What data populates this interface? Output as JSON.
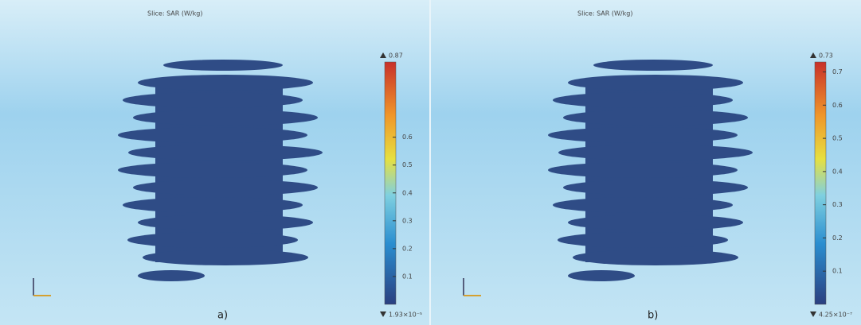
{
  "panels": [
    {
      "title": "Slice: SAR (W/kg)",
      "label": "a)",
      "colorbar": {
        "max": 0.87,
        "min": {
          "value": 1.93e-05,
          "label": "1.93×10⁻⁵"
        },
        "ticks": [
          0.6,
          0.5,
          0.4,
          0.3,
          0.2,
          0.1
        ]
      }
    },
    {
      "title": "Slice: SAR (W/kg)",
      "label": "b)",
      "colorbar": {
        "max": 0.73,
        "min": {
          "value": 4.25e-07,
          "label": "4.25×10⁻⁷"
        },
        "ticks": [
          0.7,
          0.6,
          0.5,
          0.4,
          0.3,
          0.2,
          0.1
        ]
      }
    }
  ]
}
